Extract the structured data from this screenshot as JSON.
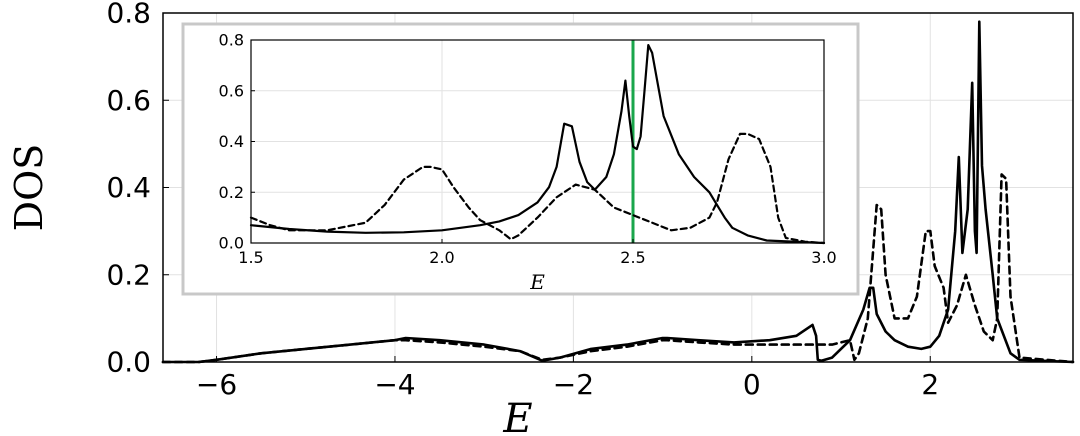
{
  "chart_data": [
    {
      "type": "line",
      "panel": "main",
      "xlabel": "E",
      "ylabel": "DOS",
      "xlim": [
        -6.6,
        3.6
      ],
      "ylim": [
        0.0,
        0.8
      ],
      "xticks": [
        -6,
        -4,
        -2,
        0,
        2
      ],
      "xtick_labels": [
        "−6",
        "−4",
        "−2",
        "0",
        "2"
      ],
      "yticks": [
        0.0,
        0.2,
        0.4,
        0.6,
        0.8
      ],
      "ytick_labels": [
        "0.0",
        "0.2",
        "0.4",
        "0.6",
        "0.8"
      ],
      "grid": true,
      "series": [
        {
          "style": "solid",
          "x": [
            -6.6,
            -6.2,
            -6.0,
            -5.5,
            -5.0,
            -4.5,
            -4.0,
            -3.88,
            -3.5,
            -3.0,
            -2.6,
            -2.35,
            -2.15,
            -1.8,
            -1.4,
            -1.0,
            -0.95,
            -0.6,
            -0.2,
            0.2,
            0.5,
            0.68,
            0.72,
            0.74,
            0.78,
            0.9,
            1.1,
            1.25,
            1.32,
            1.36,
            1.4,
            1.5,
            1.6,
            1.75,
            1.9,
            2.0,
            2.1,
            2.2,
            2.28,
            2.32,
            2.36,
            2.42,
            2.47,
            2.5,
            2.52,
            2.55,
            2.58,
            2.62,
            2.7,
            2.75,
            2.9,
            3.0,
            3.6
          ],
          "y": [
            0.0,
            0.0,
            0.005,
            0.02,
            0.03,
            0.04,
            0.05,
            0.055,
            0.05,
            0.04,
            0.025,
            0.003,
            0.01,
            0.03,
            0.04,
            0.055,
            0.055,
            0.05,
            0.045,
            0.05,
            0.06,
            0.085,
            0.06,
            0.005,
            0.003,
            0.01,
            0.05,
            0.12,
            0.17,
            0.17,
            0.11,
            0.07,
            0.05,
            0.035,
            0.03,
            0.035,
            0.06,
            0.12,
            0.3,
            0.47,
            0.25,
            0.35,
            0.64,
            0.3,
            0.25,
            0.78,
            0.45,
            0.35,
            0.2,
            0.1,
            0.02,
            0.005,
            0.0
          ]
        },
        {
          "style": "dashed",
          "x": [
            -6.6,
            -6.2,
            -6.0,
            -5.5,
            -5.0,
            -4.5,
            -4.0,
            -3.88,
            -3.5,
            -3.0,
            -2.6,
            -2.35,
            -2.15,
            -1.8,
            -1.4,
            -1.0,
            -0.95,
            -0.6,
            -0.2,
            0.2,
            0.6,
            0.9,
            1.1,
            1.15,
            1.2,
            1.3,
            1.4,
            1.45,
            1.5,
            1.6,
            1.75,
            1.85,
            1.95,
            2.0,
            2.05,
            2.15,
            2.2,
            2.3,
            2.4,
            2.5,
            2.6,
            2.7,
            2.75,
            2.8,
            2.85,
            2.9,
            3.0,
            3.6
          ],
          "y": [
            0.0,
            0.0,
            0.005,
            0.02,
            0.03,
            0.04,
            0.05,
            0.05,
            0.045,
            0.035,
            0.025,
            0.005,
            0.01,
            0.025,
            0.035,
            0.05,
            0.05,
            0.045,
            0.04,
            0.04,
            0.04,
            0.04,
            0.05,
            0.005,
            0.02,
            0.1,
            0.36,
            0.35,
            0.2,
            0.1,
            0.1,
            0.15,
            0.3,
            0.3,
            0.22,
            0.17,
            0.09,
            0.13,
            0.2,
            0.13,
            0.07,
            0.05,
            0.1,
            0.43,
            0.42,
            0.15,
            0.01,
            0.0
          ]
        }
      ]
    },
    {
      "type": "line",
      "panel": "inset",
      "xlabel": "E",
      "xlim": [
        1.5,
        3.0
      ],
      "ylim": [
        0.0,
        0.8
      ],
      "xticks": [
        1.5,
        2.0,
        2.5,
        3.0
      ],
      "xtick_labels": [
        "1.5",
        "2.0",
        "2.5",
        "3.0"
      ],
      "yticks": [
        0.0,
        0.2,
        0.4,
        0.6,
        0.8
      ],
      "ytick_labels": [
        "0.0",
        "0.2",
        "0.4",
        "0.6",
        "0.8"
      ],
      "grid": true,
      "vline": {
        "x": 2.5,
        "color": "#1aa64b"
      },
      "series": [
        {
          "style": "solid",
          "x": [
            1.5,
            1.6,
            1.7,
            1.8,
            1.9,
            2.0,
            2.1,
            2.15,
            2.2,
            2.25,
            2.28,
            2.3,
            2.32,
            2.34,
            2.36,
            2.38,
            2.4,
            2.43,
            2.45,
            2.47,
            2.48,
            2.49,
            2.5,
            2.51,
            2.52,
            2.53,
            2.54,
            2.55,
            2.58,
            2.62,
            2.66,
            2.7,
            2.72,
            2.74,
            2.76,
            2.8,
            2.85,
            3.0
          ],
          "y": [
            0.07,
            0.055,
            0.045,
            0.04,
            0.042,
            0.05,
            0.07,
            0.085,
            0.11,
            0.16,
            0.22,
            0.3,
            0.47,
            0.46,
            0.32,
            0.24,
            0.21,
            0.26,
            0.35,
            0.52,
            0.64,
            0.5,
            0.38,
            0.37,
            0.42,
            0.6,
            0.78,
            0.75,
            0.5,
            0.35,
            0.26,
            0.2,
            0.15,
            0.1,
            0.06,
            0.03,
            0.01,
            0.0
          ]
        },
        {
          "style": "dashed",
          "x": [
            1.5,
            1.55,
            1.6,
            1.7,
            1.8,
            1.85,
            1.9,
            1.95,
            1.97,
            2.0,
            2.03,
            2.07,
            2.1,
            2.15,
            2.18,
            2.2,
            2.25,
            2.3,
            2.35,
            2.4,
            2.45,
            2.5,
            2.55,
            2.6,
            2.65,
            2.7,
            2.72,
            2.75,
            2.78,
            2.8,
            2.83,
            2.86,
            2.88,
            2.9,
            2.95,
            3.0
          ],
          "y": [
            0.1,
            0.07,
            0.05,
            0.05,
            0.08,
            0.15,
            0.25,
            0.3,
            0.3,
            0.29,
            0.22,
            0.14,
            0.09,
            0.05,
            0.015,
            0.03,
            0.1,
            0.18,
            0.23,
            0.21,
            0.14,
            0.11,
            0.08,
            0.05,
            0.06,
            0.1,
            0.16,
            0.33,
            0.43,
            0.43,
            0.41,
            0.3,
            0.1,
            0.02,
            0.005,
            0.0
          ]
        }
      ]
    }
  ]
}
